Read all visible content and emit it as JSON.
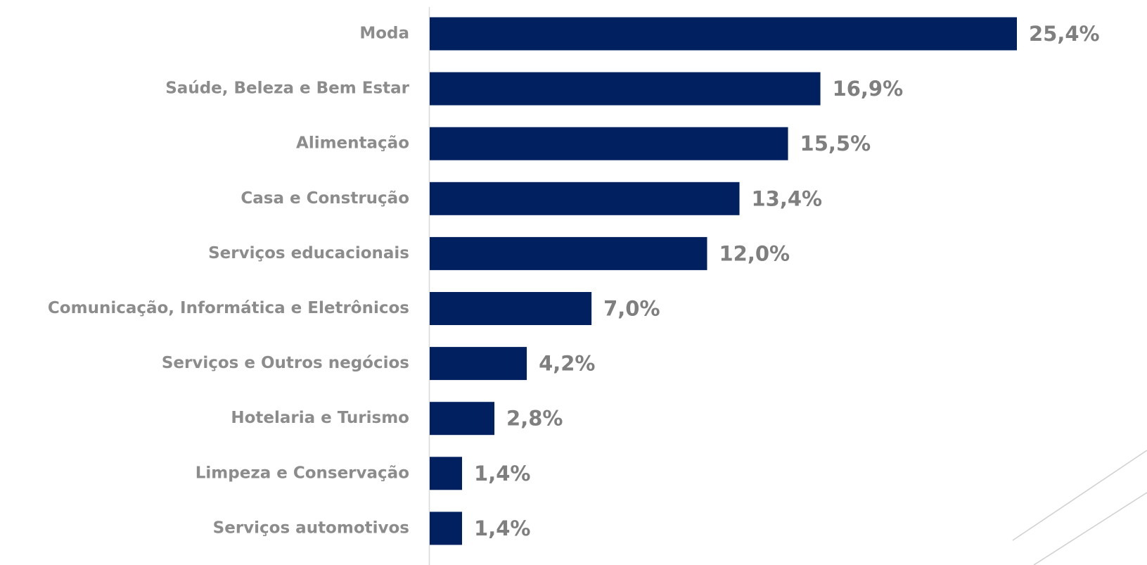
{
  "chart_data": {
    "type": "barh",
    "categories": [
      "Moda",
      "Saúde, Beleza e Bem Estar",
      "Alimentação",
      "Casa e Construção",
      "Serviços educacionais",
      "Comunicação, Informática e Eletrônicos",
      "Serviços e Outros negócios",
      "Hotelaria e Turismo",
      "Limpeza e Conservação",
      "Serviços automotivos"
    ],
    "values": [
      25.4,
      16.9,
      15.5,
      13.4,
      12.0,
      7.0,
      4.2,
      2.8,
      1.4,
      1.4
    ],
    "value_labels": [
      "25,4%",
      "16,9%",
      "15,5%",
      "13,4%",
      "12,0%",
      "7,0%",
      "4,2%",
      "2,8%",
      "1,4%",
      "1,4%"
    ],
    "color": "#002060"
  }
}
